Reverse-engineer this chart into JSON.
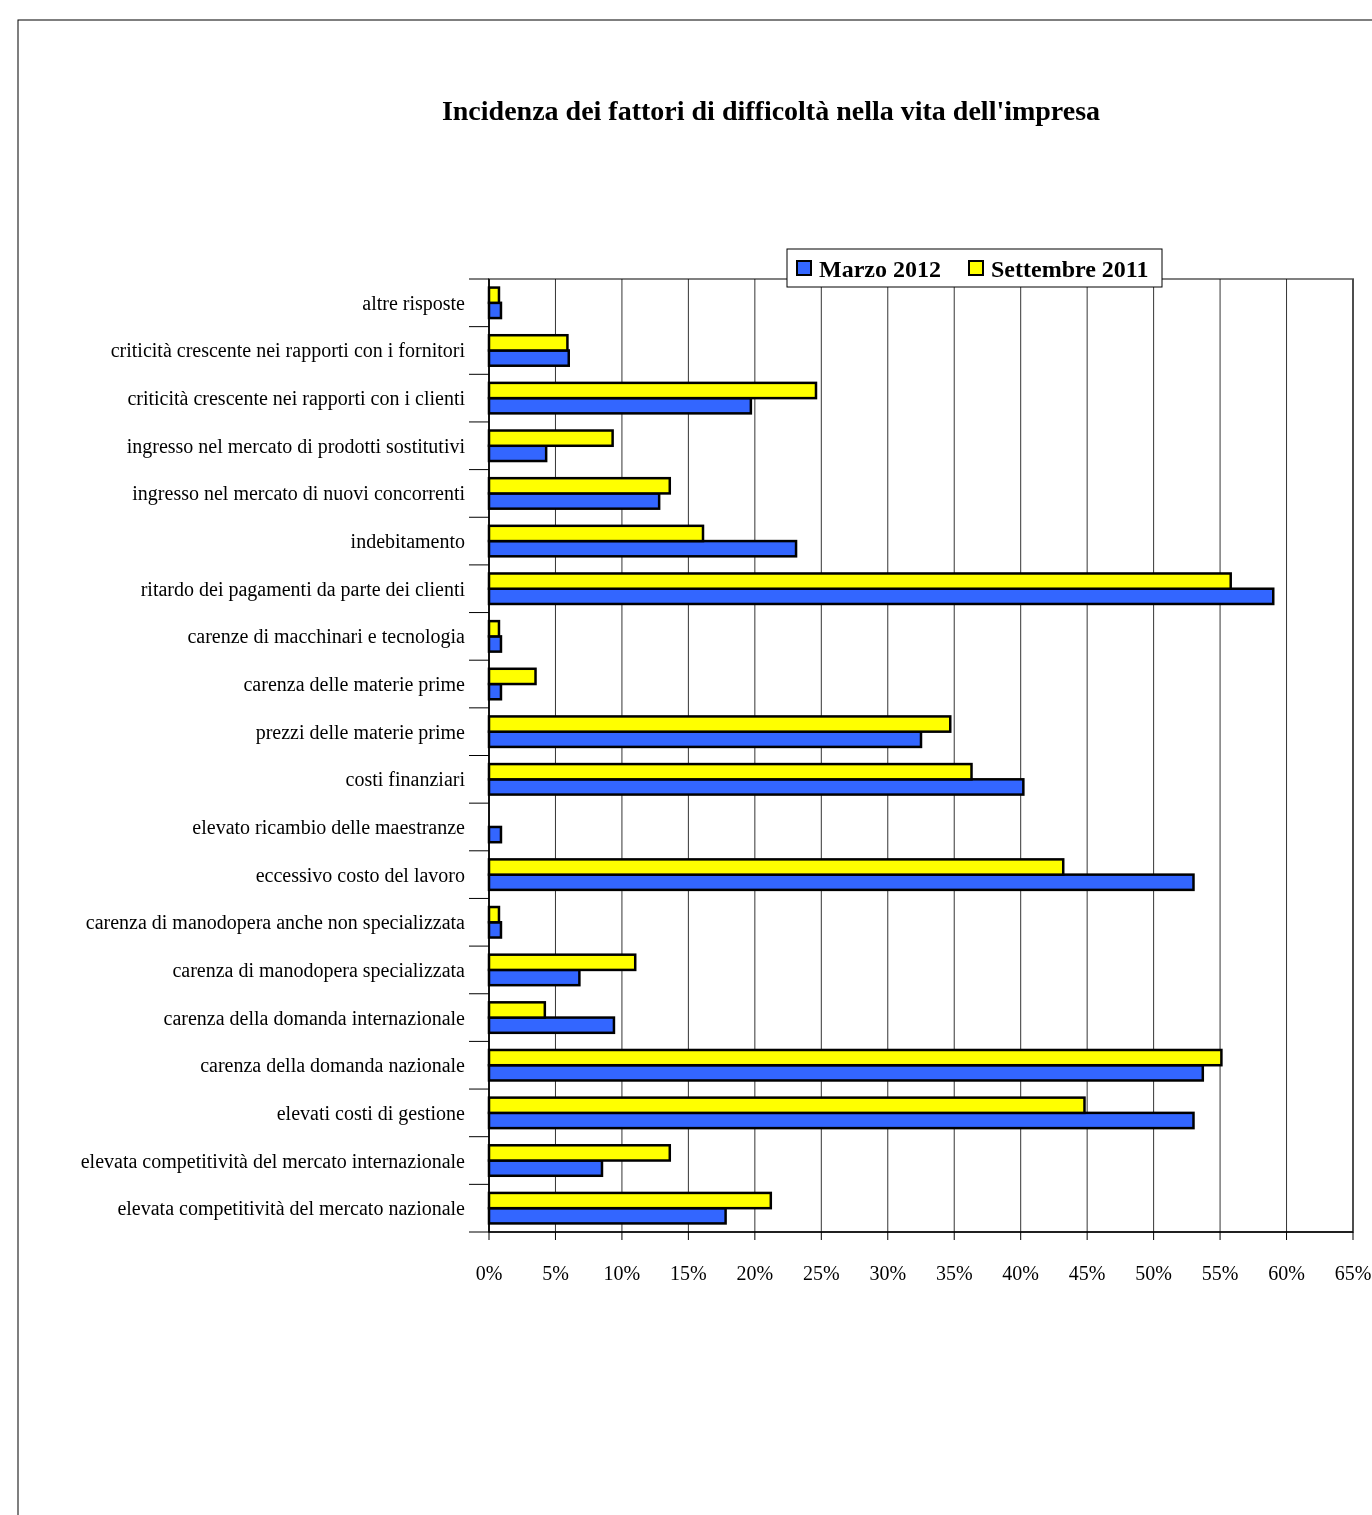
{
  "chart_data": {
    "type": "bar",
    "orientation": "horizontal",
    "title": "Incidenza dei fattori di difficoltà nella vita dell'impresa",
    "categories": [
      "altre risposte",
      "criticità crescente nei rapporti con i fornitori",
      "criticità crescente nei rapporti con i clienti",
      "ingresso nel mercato di prodotti sostitutivi",
      "ingresso nel mercato di nuovi concorrenti",
      "indebitamento",
      "ritardo dei pagamenti da parte dei clienti",
      "carenze di macchinari e tecnologia",
      "carenza delle materie prime",
      "prezzi delle materie prime",
      "costi finanziari",
      "elevato ricambio delle maestranze",
      "eccessivo costo del lavoro",
      "carenza di manodopera anche non specializzata",
      "carenza di manodopera specializzata",
      "carenza della domanda internazionale",
      "carenza della domanda nazionale",
      "elevati costi di gestione",
      "elevata competitività del mercato internazionale",
      "elevata competitività del mercato nazionale"
    ],
    "series": [
      {
        "name": "Marzo 2012",
        "color": "#3366ff",
        "values": [
          0.9,
          6.0,
          19.7,
          4.3,
          12.8,
          23.1,
          59.0,
          0.9,
          0.9,
          32.5,
          40.2,
          0.9,
          53.0,
          0.9,
          6.8,
          9.4,
          53.7,
          53.0,
          8.5,
          17.8
        ]
      },
      {
        "name": "Settembre 2011",
        "color": "#ffff00",
        "values": [
          0.75,
          5.9,
          24.6,
          9.3,
          13.6,
          16.1,
          55.8,
          0.75,
          3.5,
          34.7,
          36.3,
          0,
          43.2,
          0.75,
          11.0,
          4.2,
          55.1,
          44.8,
          13.6,
          21.2
        ]
      }
    ],
    "xlim": [
      0,
      65
    ],
    "xticks": [
      {
        "value": 0,
        "label": "0%"
      },
      {
        "value": 5,
        "label": "5%"
      },
      {
        "value": 10,
        "label": "10%"
      },
      {
        "value": 15,
        "label": "15%"
      },
      {
        "value": 20,
        "label": "20%"
      },
      {
        "value": 25,
        "label": "25%"
      },
      {
        "value": 30,
        "label": "30%"
      },
      {
        "value": 35,
        "label": "35%"
      },
      {
        "value": 40,
        "label": "40%"
      },
      {
        "value": 45,
        "label": "45%"
      },
      {
        "value": 50,
        "label": "50%"
      },
      {
        "value": 55,
        "label": "55%"
      },
      {
        "value": 60,
        "label": "60%"
      },
      {
        "value": 65,
        "label": "65%"
      }
    ],
    "grid": "x",
    "legend": "top right"
  }
}
